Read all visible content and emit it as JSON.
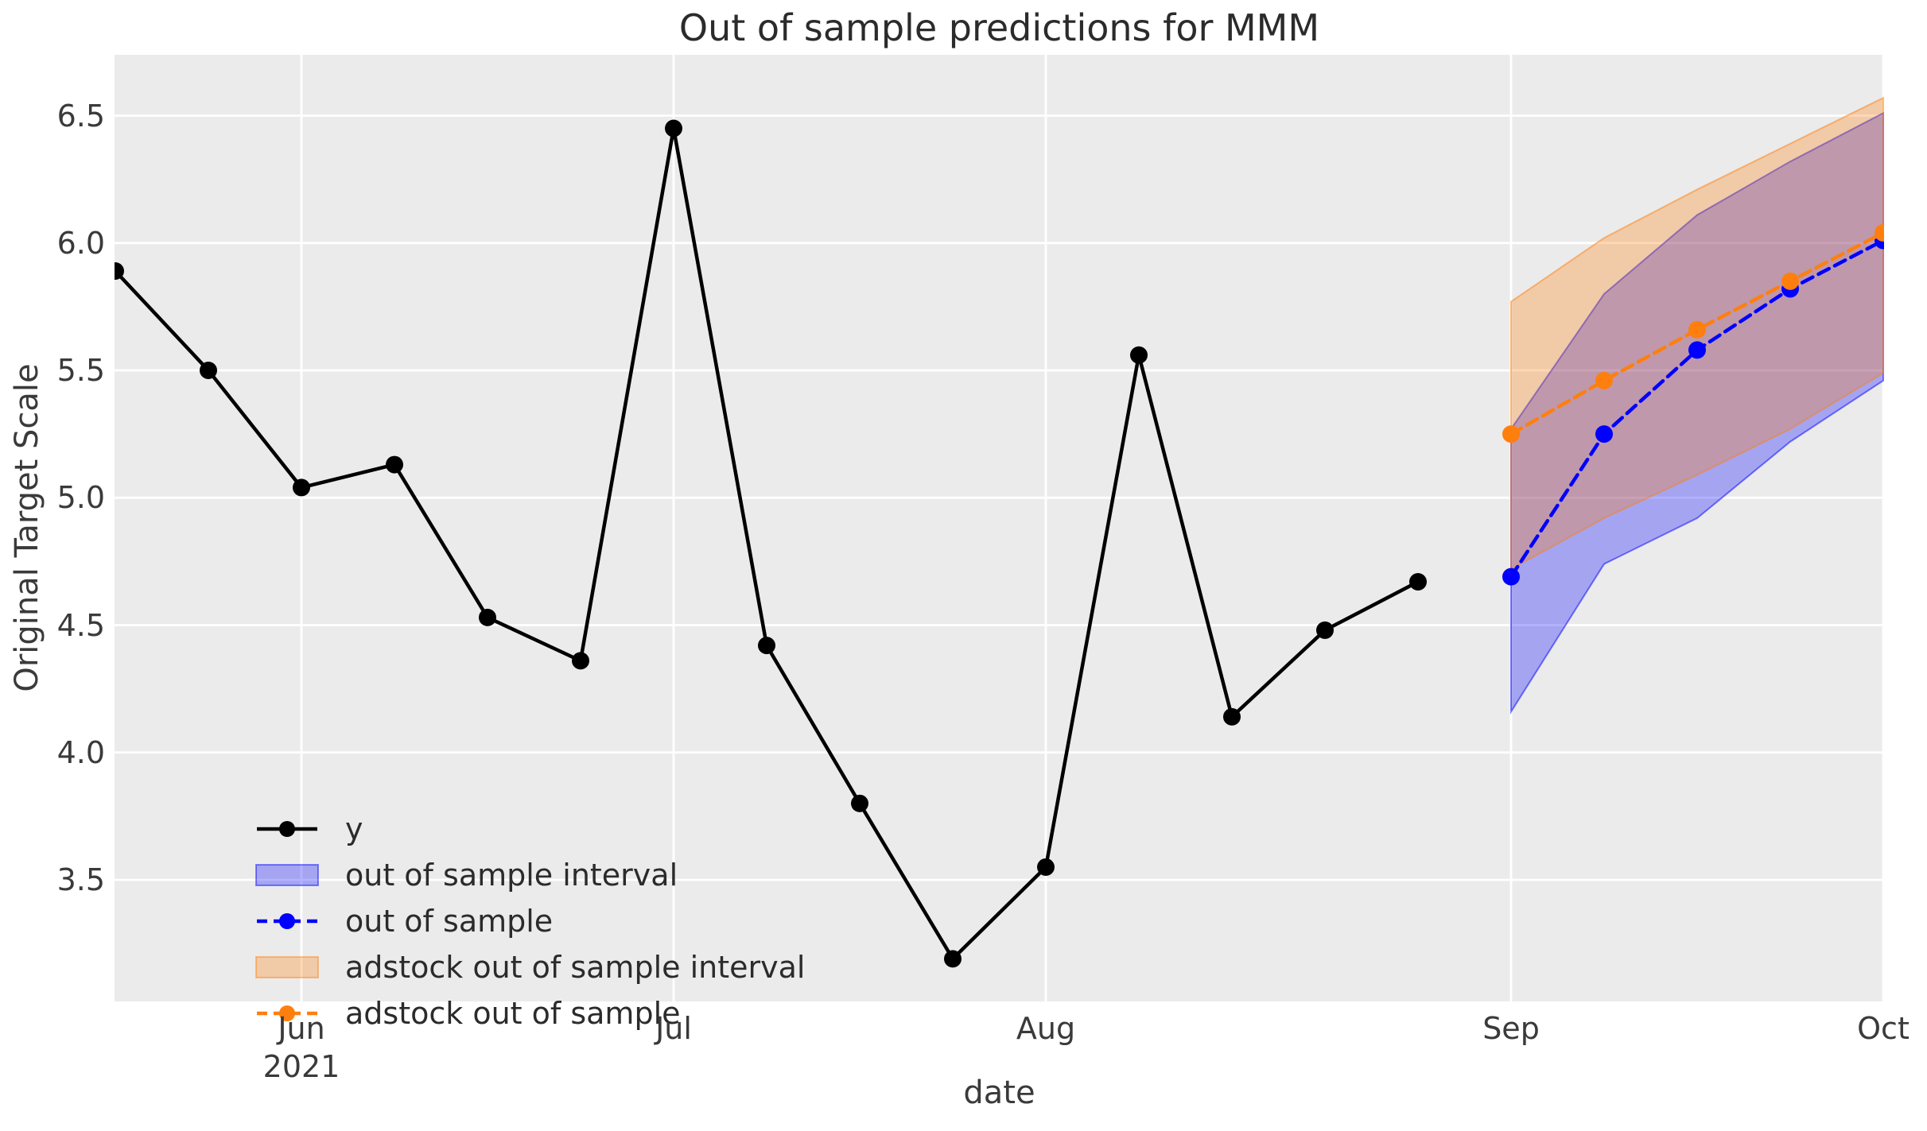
{
  "title": "Out of sample predictions for MMM",
  "colors": {
    "y_series": "#000000",
    "out_of_sample": "#0000ff",
    "adstock": "#ff7f0e",
    "plot_background": "#ebebeb",
    "gridline": "#ffffff",
    "text": "#3a3a3a",
    "title_text": "#2b2b2b"
  },
  "legend": [
    {
      "label": "y",
      "type": "line-marker",
      "color": "#000000"
    },
    {
      "label": "out of sample interval",
      "type": "patch",
      "color": "#0000ff"
    },
    {
      "label": "out of sample",
      "type": "dashed-marker",
      "color": "#0000ff"
    },
    {
      "label": "adstock out of sample interval",
      "type": "patch",
      "color": "#ff7f0e"
    },
    {
      "label": "adstock out of sample",
      "type": "dashed-marker",
      "color": "#ff7f0e"
    }
  ],
  "chart_data": {
    "type": "line",
    "title": "Out of sample predictions for MMM",
    "xlabel": "date",
    "ylabel": "Original Target Scale",
    "grid": true,
    "legend_position": "lower left",
    "x_axis": {
      "unit": "weekly index",
      "range": [
        -0.01,
        19.02
      ],
      "ticks": [
        {
          "index": 2,
          "label": "Jun",
          "sublabel": "2021"
        },
        {
          "index": 6,
          "label": "Jul"
        },
        {
          "index": 10,
          "label": "Aug"
        },
        {
          "index": 15,
          "label": "Sep"
        },
        {
          "index": 19,
          "label": "Oct"
        }
      ]
    },
    "y_axis": {
      "range": [
        3.02,
        6.74
      ],
      "ticks": [
        {
          "value": 6.5,
          "label": "6.5"
        },
        {
          "value": 6.0,
          "label": "6.0"
        },
        {
          "value": 5.5,
          "label": "5.5"
        },
        {
          "value": 5.0,
          "label": "5.0"
        },
        {
          "value": 4.5,
          "label": "4.5"
        },
        {
          "value": 4.0,
          "label": "4.0"
        },
        {
          "value": 3.5,
          "label": "3.5"
        }
      ]
    },
    "series": [
      {
        "name": "y",
        "style": "solid",
        "color": "#000000",
        "marker": true,
        "x": [
          0,
          1,
          2,
          3,
          4,
          5,
          6,
          7,
          8,
          9,
          10,
          11,
          12,
          13,
          14
        ],
        "values": [
          5.89,
          5.5,
          5.04,
          5.13,
          4.53,
          4.36,
          6.45,
          4.42,
          3.8,
          3.19,
          3.55,
          5.56,
          4.14,
          4.48,
          4.67
        ]
      },
      {
        "name": "out of sample",
        "style": "dashed",
        "color": "#0000ff",
        "marker": true,
        "x": [
          15,
          16,
          17,
          18,
          19
        ],
        "values": [
          4.69,
          5.25,
          5.58,
          5.82,
          6.01
        ]
      },
      {
        "name": "adstock out of sample",
        "style": "dashed",
        "color": "#ff7f0e",
        "marker": true,
        "x": [
          15,
          16,
          17,
          18,
          19
        ],
        "values": [
          5.25,
          5.46,
          5.66,
          5.85,
          6.04
        ]
      }
    ],
    "intervals": [
      {
        "name": "out of sample interval",
        "color": "#0000ff",
        "opacity": 0.3,
        "x": [
          15,
          16,
          17,
          18,
          19
        ],
        "lower": [
          4.16,
          4.74,
          4.92,
          5.22,
          5.46
        ],
        "upper": [
          5.27,
          5.8,
          6.11,
          6.32,
          6.51
        ]
      },
      {
        "name": "adstock out of sample interval",
        "color": "#ff7f0e",
        "opacity": 0.3,
        "x": [
          15,
          16,
          17,
          18,
          19
        ],
        "lower": [
          4.72,
          4.92,
          5.09,
          5.27,
          5.49
        ],
        "upper": [
          5.77,
          6.02,
          6.21,
          6.39,
          6.57
        ]
      }
    ]
  }
}
